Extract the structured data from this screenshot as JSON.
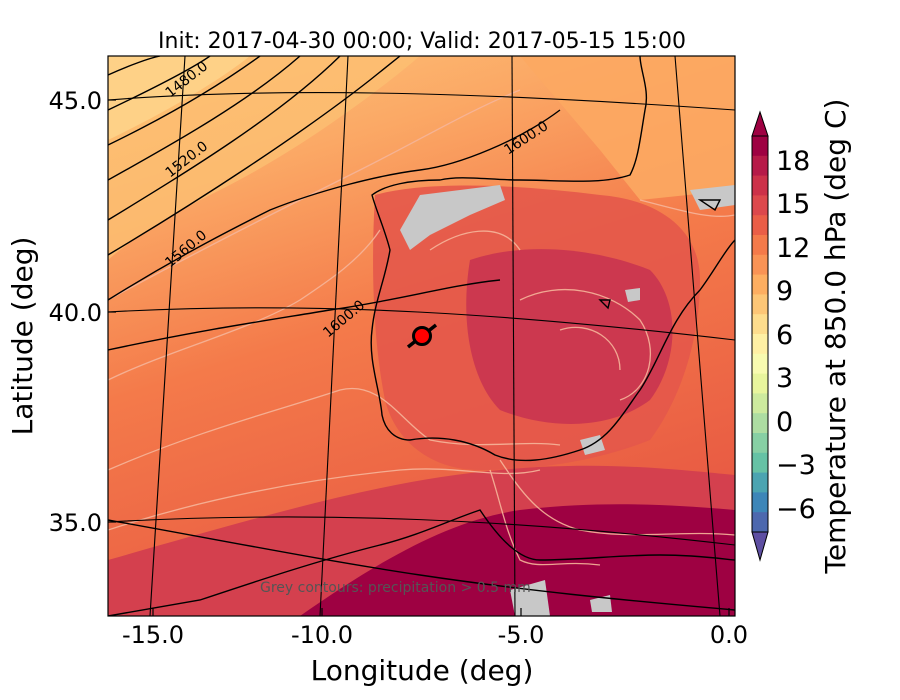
{
  "title": "Init: 2017-04-30 00:00; Valid: 2017-05-15 15:00",
  "xlabel": "Longitude (deg)",
  "ylabel": "Latitude (deg)",
  "x_ticks": [
    "-15.0",
    "-10.0",
    "-5.0",
    "0.0"
  ],
  "y_ticks": [
    "45.0",
    "40.0",
    "35.0"
  ],
  "colorbar": {
    "label": "Temperature at 850.0 hPa (deg C)",
    "ticks": [
      "18",
      "15",
      "12",
      "9",
      "6",
      "3",
      "0",
      "−3",
      "−6"
    ],
    "range": [
      -8,
      20
    ],
    "extend": "both"
  },
  "geopotential_contour_labels": [
    "1480.0",
    "1520.0",
    "1560.0",
    "1600.0",
    "1600.0"
  ],
  "note": "Grey contours: precipitation > 0.5 mm",
  "marker": {
    "lon": -7.7,
    "lat": 39.4,
    "color": "#ff0000"
  },
  "colors": {
    "cool": "#fdae61",
    "warm": "#f46d43",
    "hot": "#d53e4f",
    "hottest": "#9e0142",
    "precip": "#c8c8c8"
  },
  "chart_data": {
    "type": "heatmap",
    "variable": "Temperature at 850.0 hPa",
    "units": "deg C",
    "x_range": [
      -16,
      0.2
    ],
    "y_range": [
      32.5,
      46
    ],
    "color_range": [
      -8,
      20
    ],
    "geopotential_contours": [
      1480,
      1520,
      1560,
      1600
    ]
  }
}
